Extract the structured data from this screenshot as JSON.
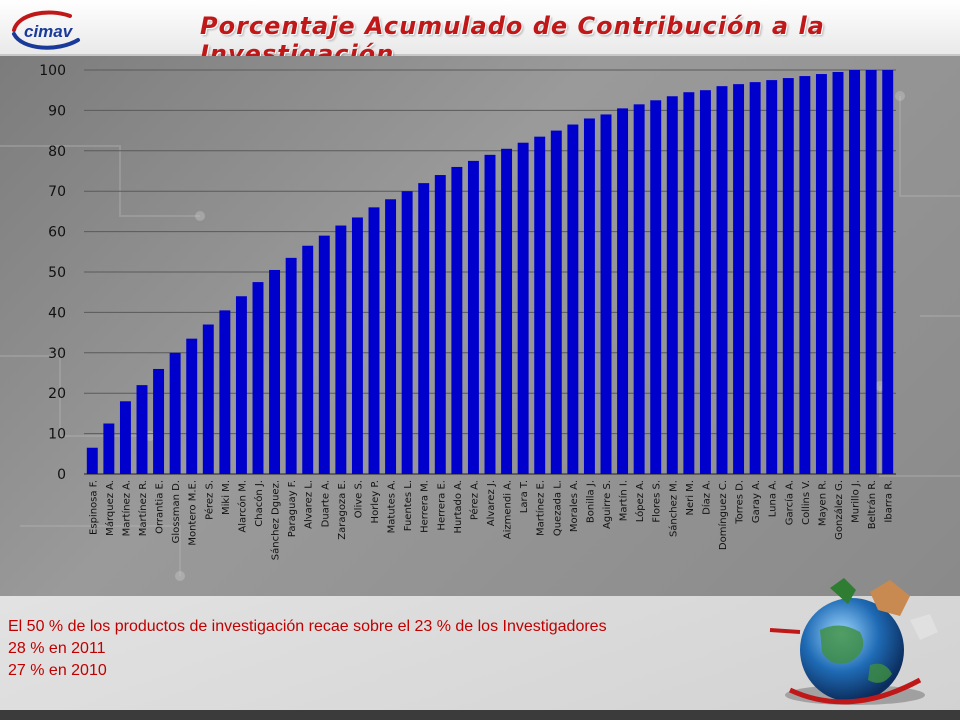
{
  "header": {
    "logo_text": "cimav",
    "title": "Porcentaje Acumulado de Contribución a la Investigación"
  },
  "chart_data": {
    "type": "bar",
    "title": "Porcentaje Acumulado de Contribución a la Investigación",
    "xlabel": "",
    "ylabel": "",
    "ylim": [
      0,
      100
    ],
    "yticks": [
      0,
      10,
      20,
      30,
      40,
      50,
      60,
      70,
      80,
      90,
      100
    ],
    "grid": true,
    "bar_color": "#0000cc",
    "categories": [
      "Espinosa F.",
      "Márquez A.",
      "Martínez A.",
      "Martínez R.",
      "Orrantia E.",
      "Glossman D.",
      "Montero M.E.",
      "Pérez S.",
      "Miki M.",
      "Alarcón M.",
      "Chacón J.",
      "Sánchez Dguez.",
      "Paraguay F.",
      "Alvarez L.",
      "Duarte A.",
      "Zaragoza E.",
      "Olive S.",
      "Horley P.",
      "Matutes A.",
      "Fuentes L.",
      "Herrera M.",
      "Herrera E.",
      "Hurtado A.",
      "Pérez A.",
      "Alvarez J.",
      "Aizmendi A.",
      "Lara T.",
      "Martínez E.",
      "Quezada L.",
      "Morales A.",
      "Bonilla J.",
      "Aguirre S.",
      "Martín I.",
      "López A.",
      "Flores S.",
      "Sánchez M.",
      "Neri M.",
      "Díaz A.",
      "Domínguez C.",
      "Torres D.",
      "Garay A.",
      "Luna A.",
      "García A.",
      "Collins V.",
      "Mayen R.",
      "González G.",
      "Murillo J.",
      "Beltrán R.",
      "Ibarra R."
    ],
    "values": [
      6.5,
      12.5,
      18,
      22,
      26,
      30,
      33.5,
      37,
      40.5,
      44,
      47.5,
      50.5,
      53.5,
      56.5,
      59,
      61.5,
      63.5,
      66,
      68,
      70,
      72,
      74,
      76,
      77.5,
      79,
      80.5,
      82,
      83.5,
      85,
      86.5,
      88,
      89,
      90.5,
      91.5,
      92.5,
      93.5,
      94.5,
      95,
      96,
      96.5,
      97,
      97.5,
      98,
      98.5,
      99,
      99.5,
      100,
      100,
      100
    ]
  },
  "footer": {
    "line1": "El 50 % de los productos de investigación recae sobre el 23 % de los Investigadores",
    "line2": "28 % en 2011",
    "line3": "27 % en 2010"
  },
  "colors": {
    "title": "#c01818",
    "bars": "#0000cc",
    "footer_text": "#c00000"
  }
}
